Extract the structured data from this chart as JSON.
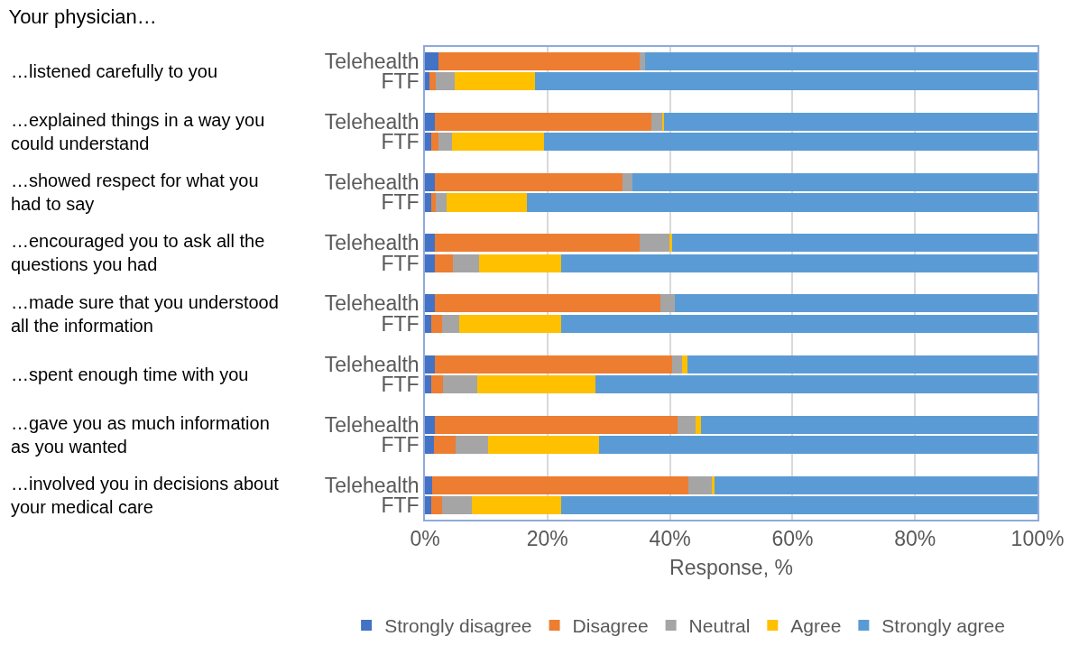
{
  "chart_data": {
    "type": "bar",
    "orientation": "horizontal",
    "stacked": true,
    "title": "Your physician…",
    "xlabel": "Response, %",
    "categories": [
      "Telehealth",
      "FTF",
      "Telehealth",
      "FTF",
      "Telehealth",
      "FTF",
      "Telehealth",
      "FTF",
      "Telehealth",
      "FTF",
      "Telehealth",
      "FTF",
      "Telehealth",
      "FTF",
      "Telehealth",
      "FTF"
    ],
    "annotations": [
      "…listened carefully to you",
      "…explained things in a way you could understand",
      "…showed respect for what you had to say",
      "…encouraged you to ask all the questions you had",
      "…made sure that you understood all the information",
      "…spent enough time with you",
      "…gave you as much information as you wanted",
      "…involved you in decisions about your medical care"
    ],
    "series": [
      {
        "name": "Strongly disagree",
        "color": "#4472c4",
        "values": [
          2.2,
          0.8,
          1.6,
          1.0,
          1.6,
          1.0,
          1.6,
          1.6,
          1.6,
          1.0,
          1.6,
          1.0,
          1.6,
          1.4,
          1.2,
          1.0
        ]
      },
      {
        "name": "Disagree",
        "color": "#ed7d31",
        "values": [
          32.9,
          1.0,
          35.3,
          1.2,
          30.6,
          0.8,
          33.5,
          3.0,
          36.9,
          1.8,
          38.7,
          2.0,
          39.7,
          3.6,
          41.8,
          1.8
        ]
      },
      {
        "name": "Neutral",
        "color": "#a5a5a5",
        "values": [
          0.8,
          3.0,
          1.8,
          2.2,
          1.6,
          1.8,
          4.8,
          4.2,
          2.3,
          2.8,
          1.7,
          5.5,
          2.9,
          5.3,
          3.9,
          4.9
        ]
      },
      {
        "name": "Agree",
        "color": "#ffc000",
        "values": [
          null,
          13.2,
          0.4,
          15.0,
          null,
          13.0,
          0.4,
          13.5,
          null,
          16.7,
          0.8,
          19.3,
          0.8,
          18.1,
          0.4,
          14.6
        ]
      },
      {
        "name": "Strongly agree",
        "color": "#5b9bd5",
        "values": [
          64.1,
          82.0,
          60.9,
          80.6,
          66.2,
          83.4,
          59.7,
          77.7,
          59.2,
          77.7,
          57.2,
          72.2,
          55.0,
          71.6,
          52.7,
          77.7
        ]
      }
    ],
    "xlim": [
      0,
      100
    ],
    "xticks": [
      {
        "value": 0,
        "label": "0%"
      },
      {
        "value": 20,
        "label": "20%"
      },
      {
        "value": 40,
        "label": "40%"
      },
      {
        "value": 60,
        "label": "60%"
      },
      {
        "value": 80,
        "label": "80%"
      },
      {
        "value": 100,
        "label": "100%"
      }
    ],
    "grid": "x",
    "legend": "bottom"
  }
}
